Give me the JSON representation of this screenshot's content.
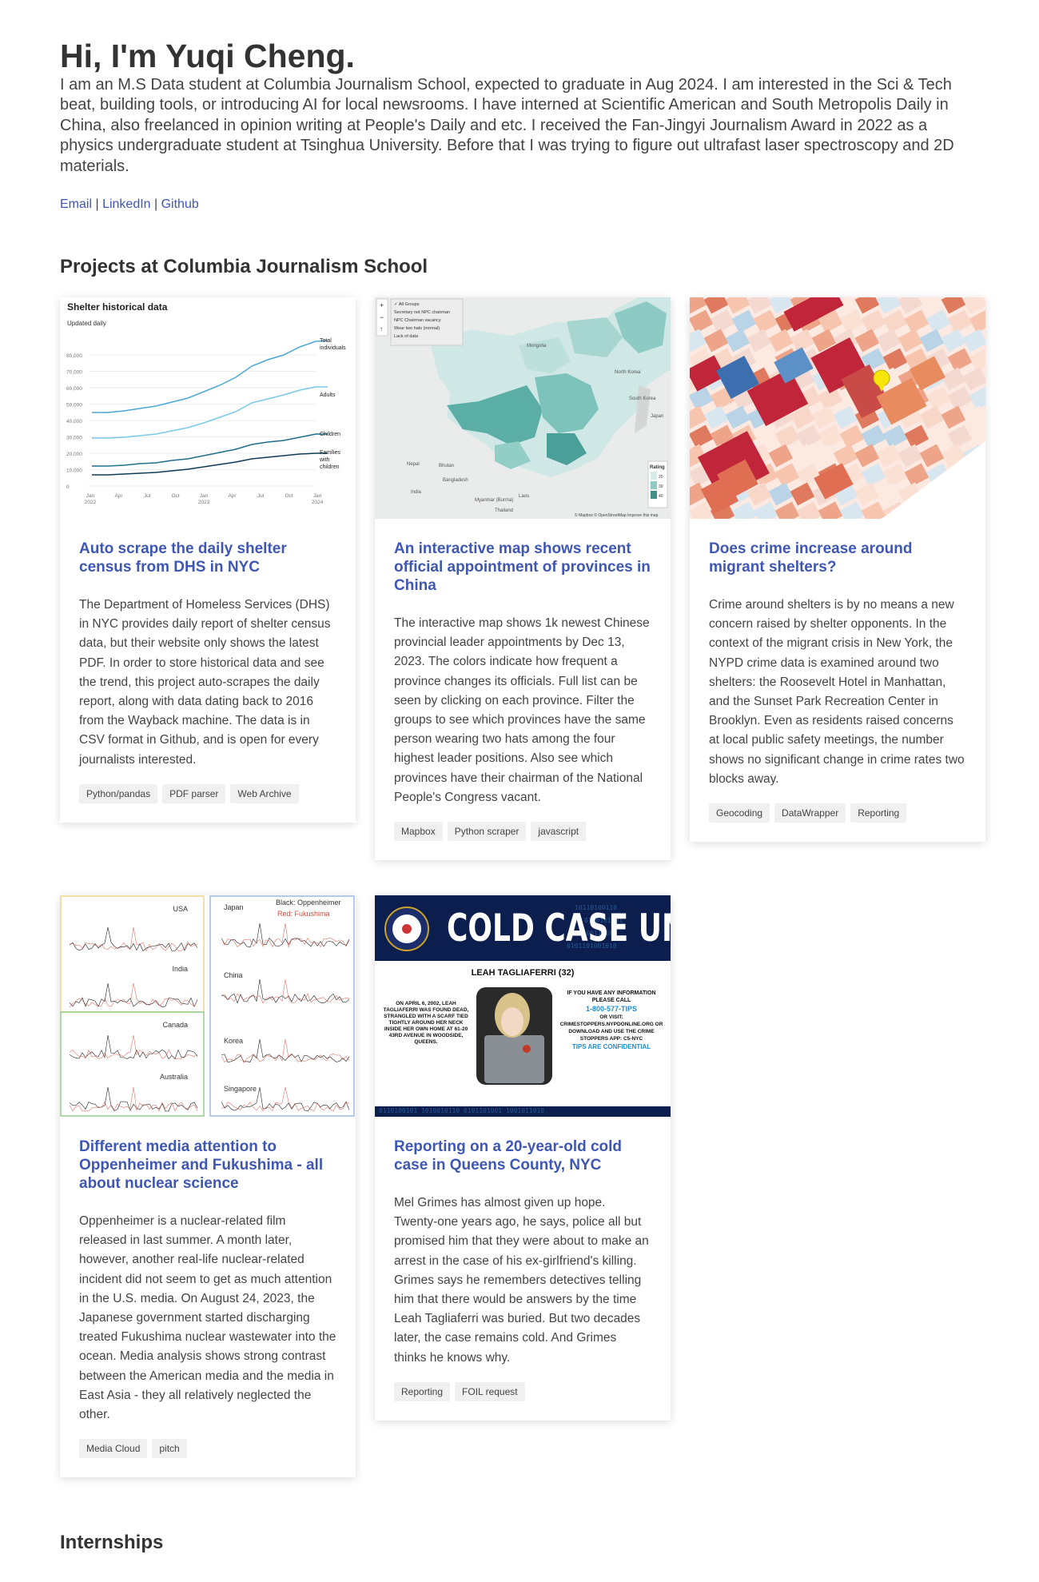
{
  "hero": {
    "title": "Hi, I'm Yuqi Cheng.",
    "bio": "I am an M.S Data student at Columbia Journalism School, expected to graduate in Aug 2024. I am interested in the Sci & Tech beat, building tools, or introducing AI for local newsrooms. I have interned at Scientific American and South Metropolis Daily in China, also freelanced in opinion writing at People's Daily and etc. I received the Fan-Jingyi Journalism Award in 2022 as a physics undergraduate student at Tsinghua University. Before that I was trying to figure out ultrafast laser spectroscopy and 2D materials.",
    "links": {
      "email": "Email",
      "sep1": " | ",
      "linkedin": "LinkedIn",
      "sep2": " | ",
      "github": "Github"
    }
  },
  "sections": {
    "projects": "Projects at Columbia Journalism School",
    "internships": "Internships"
  },
  "cards": [
    {
      "title": "Auto scrape the daily shelter census from DHS in NYC",
      "desc": "The Department of Homeless Services (DHS) in NYC provides daily report of shelter census data, but their website only shows the latest PDF. In order to store historical data and see the trend, this project auto-scrapes the daily report, along with data dating back to 2016 from the Wayback machine. The data is in CSV format in Github, and is open for every journalists interested.",
      "tags": [
        "Python/pandas",
        "PDF parser",
        "Web Archive"
      ]
    },
    {
      "title": "An interactive map shows recent official appointment of provinces in China",
      "desc": "The interactive map shows 1k newest Chinese provincial leader appointments by Dec 13, 2023. The colors indicate how frequent a province changes its officials. Full list can be seen by clicking on each province. Filter the groups to see which provinces have the same person wearing two hats among the four highest leader positions. Also see which provinces have their chairman of the National People's Congress vacant.",
      "tags": [
        "Mapbox",
        "Python scraper",
        "javascript"
      ]
    },
    {
      "title": "Does crime increase around migrant shelters?",
      "desc": "Crime around shelters is by no means a new concern raised by shelter opponents. In the context of the migrant crisis in New York, the NYPD crime data is examined around two shelters: the Roosevelt Hotel in Manhattan, and the Sunset Park Recreation Center in Brooklyn. Even as residents raised concerns at local public safety meetings, the number shows no significant change in crime rates two blocks away.",
      "tags": [
        "Geocoding",
        "DataWrapper",
        "Reporting"
      ]
    },
    {
      "title": "Different media attention to Oppenheimer and Fukushima - all about nuclear science",
      "desc": "Oppenheimer is a nuclear-related film released in last summer. A month later, however, another real-life nuclear-related incident did not seem to get as much attention in the U.S. media. On August 24, 2023, the Japanese government started discharging treated Fukushima nuclear wastewater into the ocean. Media analysis shows strong contrast between the American media and the media in East Asia - they all relatively neglected the other.",
      "tags": [
        "Media Cloud",
        "pitch"
      ]
    },
    {
      "title": "Reporting on a 20-year-old cold case in Queens County, NYC",
      "desc": "Mel Grimes has almost given up hope. Twenty-one years ago, he says, police all but promised him that they were about to make an arrest in the case of his ex-girlfriend's killing. Grimes says he remembers detectives telling him that there would be answers by the time Leah Tagliaferri was buried. But two decades later, the case remains cold. And Grimes thinks he knows why.",
      "tags": [
        "Reporting",
        "FOIL request"
      ]
    }
  ],
  "thumbs": {
    "shelter": {
      "title": "Shelter historical data",
      "subtitle": "Updated daily",
      "yticks": [
        "80,000",
        "70,000",
        "60,000",
        "50,000",
        "40,000",
        "30,000",
        "20,000",
        "10,000",
        "0"
      ],
      "xticks": [
        "Jan\n2022",
        "Apr",
        "Jul",
        "Oct",
        "Jan\n2023",
        "Apr",
        "Jul",
        "Oct",
        "Jan\n2024"
      ],
      "series": [
        "Total individuals",
        "Adults",
        "Children",
        "Families with children"
      ]
    },
    "map": {
      "legend": [
        "All Groups",
        "Secretary not NPC chairman",
        "NPC Chairman vacancy",
        "Wear two hats (normal)",
        "Lack of data"
      ],
      "rating_title": "Rating",
      "rating": [
        "20",
        "30",
        "40"
      ],
      "places": [
        "Mongolia",
        "Nepal",
        "Bhutan",
        "Bangladesh",
        "India",
        "Myanmar (Burma)",
        "Laos",
        "Thailand",
        "South Korea",
        "Japan",
        "North Korea"
      ],
      "credit": "© Mapbox © OpenStreetMap Improve this map"
    },
    "media": {
      "panels": [
        "USA",
        "India",
        "Canada",
        "Australia",
        "Japan",
        "China",
        "Korea",
        "Singapore"
      ],
      "legend1": "Black: Oppenheimer",
      "legend2": "Red: Fukushima"
    },
    "coldcase": {
      "banner": "COLD CASE UNIT",
      "name": "LEAH TAGLIAFERRI (32)",
      "left_text": "ON APRIL 6, 2002, LEAH TAGLIAFERRI WAS FOUND DEAD, STRANGLED WITH A SCARF TIED TIGHTLY AROUND HER NECK INSIDE HER OWN HOME AT 61-20 43RD AVENUE IN WOODSIDE, QUEENS.",
      "info1": "IF YOU HAVE ANY INFORMATION PLEASE CALL",
      "phone": "1-800-577-TIPS",
      "info2": "OR VISIT: CRIMESTOPPERS.NYPDONLINE.ORG OR DOWNLOAD AND USE THE CRIME STOPPERS APP: C5-NYC",
      "confidential": "TIPS ARE CONFIDENTIAL"
    }
  },
  "colors": {
    "link": "#3f57b4",
    "text": "#444444"
  }
}
